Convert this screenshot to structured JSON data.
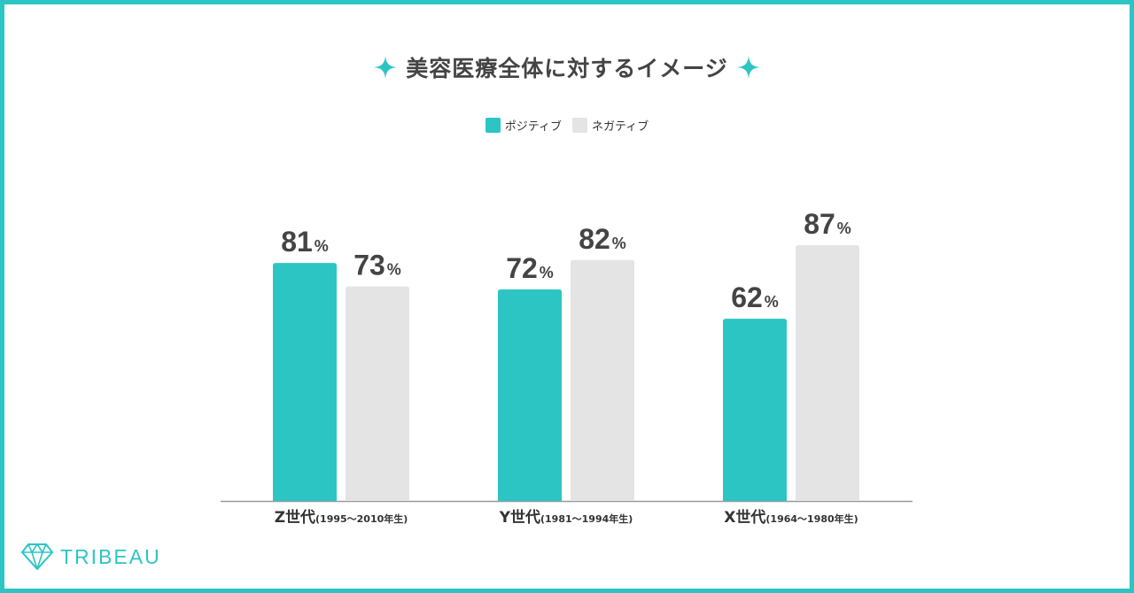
{
  "chart_data": {
    "type": "bar",
    "title": "美容医療全体に対するイメージ",
    "categories": [
      {
        "main": "Z世代",
        "sub": "(1995〜2010年生)"
      },
      {
        "main": "Y世代",
        "sub": "(1981〜1994年生)"
      },
      {
        "main": "X世代",
        "sub": "(1964〜1980年生)"
      }
    ],
    "series": [
      {
        "name": "ポジティブ",
        "values": [
          81,
          72,
          62
        ],
        "color": "#2cc5c4"
      },
      {
        "name": "ネガティブ",
        "values": [
          73,
          82,
          87
        ],
        "color": "#e4e4e4"
      }
    ],
    "value_suffix": "%",
    "xlabel": "",
    "ylabel": "",
    "ylim": [
      0,
      100
    ],
    "grid": false,
    "legend_position": "top-center"
  },
  "brand": {
    "name": "TRIBEAU",
    "accent_color": "#2cc5c4"
  }
}
